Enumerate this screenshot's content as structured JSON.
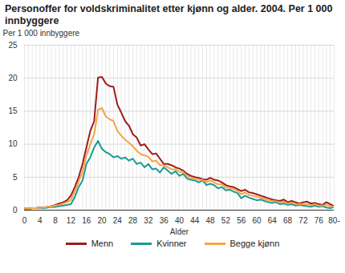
{
  "chart_data": {
    "type": "line",
    "title": "Personoffer for voldskriminalitet etter kjønn og alder. 2004. Per 1 000 innbyggere",
    "y_label": "Per 1 000 innbyggere",
    "x_label": "Alder",
    "x": [
      0,
      1,
      2,
      3,
      4,
      5,
      6,
      7,
      8,
      9,
      10,
      11,
      12,
      13,
      14,
      15,
      16,
      17,
      18,
      19,
      20,
      21,
      22,
      23,
      24,
      25,
      26,
      27,
      28,
      29,
      30,
      31,
      32,
      33,
      34,
      35,
      36,
      37,
      38,
      39,
      40,
      41,
      42,
      43,
      44,
      45,
      46,
      47,
      48,
      49,
      50,
      51,
      52,
      53,
      54,
      55,
      56,
      57,
      58,
      59,
      60,
      61,
      62,
      63,
      64,
      65,
      66,
      67,
      68,
      69,
      70,
      71,
      72,
      73,
      74,
      75,
      76,
      77,
      78,
      79,
      80
    ],
    "series": [
      {
        "name": "Menn",
        "color": "#9e1b1b",
        "values": [
          0.3,
          0.2,
          0.3,
          0.3,
          0.4,
          0.4,
          0.5,
          0.6,
          0.8,
          1.0,
          1.2,
          1.5,
          2.2,
          3.5,
          5,
          7,
          9.5,
          12,
          13.5,
          20.1,
          20.2,
          19.2,
          18.8,
          18.7,
          16,
          14.8,
          13.5,
          12.8,
          11.5,
          11,
          9.8,
          10,
          9.2,
          8.5,
          8.6,
          7.8,
          7,
          7,
          6.8,
          6.5,
          6.3,
          6,
          5.5,
          5.2,
          5,
          4.9,
          4.7,
          4.6,
          4.9,
          4.6,
          4.5,
          4.2,
          3.8,
          3.6,
          3.5,
          3.2,
          2.9,
          3.1,
          2.7,
          2.6,
          2.4,
          2.2,
          2,
          1.8,
          1.6,
          1.5,
          1.4,
          1.6,
          1.2,
          1.4,
          1.2,
          1.0,
          1.2,
          1.3,
          1.0,
          1.1,
          0.9,
          0.8,
          1.2,
          0.9,
          0.6
        ]
      },
      {
        "name": "Kvinner",
        "color": "#1a9a96",
        "values": [
          0.2,
          0.2,
          0.3,
          0.3,
          0.4,
          0.3,
          0.4,
          0.5,
          0.5,
          0.6,
          0.7,
          0.8,
          0.9,
          2,
          3.5,
          4.5,
          7,
          8,
          9.5,
          10.5,
          9.3,
          8.8,
          8.5,
          8,
          8.2,
          7.8,
          8,
          7.5,
          7.8,
          7,
          7.2,
          6.5,
          7,
          6.2,
          6.3,
          5.7,
          6.5,
          6,
          5.5,
          5.9,
          5.2,
          5.5,
          4.8,
          4.6,
          4.5,
          4.2,
          4.5,
          3.8,
          4,
          3.8,
          3.3,
          3.5,
          3.0,
          3.1,
          2.8,
          2.6,
          1.8,
          2.2,
          1.9,
          1.7,
          1.5,
          1.6,
          1.4,
          1.2,
          1.1,
          1.2,
          0.9,
          1.0,
          0.8,
          0.9,
          0.7,
          0.8,
          0.7,
          0.6,
          0.5,
          0.7,
          0.5,
          0.6,
          0.4,
          0.3,
          0.5
        ]
      },
      {
        "name": "Begge kjønn",
        "color": "#f4a442",
        "values": [
          0.3,
          0.2,
          0.3,
          0.3,
          0.4,
          0.4,
          0.5,
          0.6,
          0.7,
          0.8,
          1.0,
          1.2,
          1.6,
          2.8,
          4.3,
          5.8,
          8.3,
          10,
          11.5,
          15.2,
          15.5,
          14.2,
          13.8,
          13.5,
          12,
          11.3,
          10.7,
          10.2,
          9.7,
          9,
          8.5,
          8.3,
          8.1,
          7.4,
          7.5,
          6.8,
          6.8,
          6.5,
          6.2,
          6.2,
          5.8,
          5.8,
          5.2,
          4.9,
          4.8,
          4.6,
          4.6,
          4.2,
          4.5,
          4.2,
          3.9,
          3.9,
          3.4,
          3.4,
          3.2,
          2.9,
          2.4,
          2.7,
          2.3,
          2.2,
          2.0,
          1.9,
          1.7,
          1.5,
          1.4,
          1.35,
          1.2,
          1.3,
          1.0,
          1.15,
          0.95,
          0.9,
          0.95,
          0.95,
          0.75,
          0.9,
          0.7,
          0.7,
          0.8,
          0.6,
          0.55
        ]
      }
    ],
    "xlim": [
      0,
      80
    ],
    "xticks": [
      0,
      4,
      8,
      12,
      16,
      20,
      24,
      28,
      32,
      36,
      40,
      44,
      48,
      52,
      56,
      60,
      64,
      68,
      72,
      76,
      {
        "value": 80,
        "label": "80-"
      }
    ],
    "ylim": [
      0,
      25
    ],
    "yticks": [
      0,
      5,
      10,
      15,
      20,
      25
    ],
    "grid": true,
    "legend": "bottom"
  }
}
